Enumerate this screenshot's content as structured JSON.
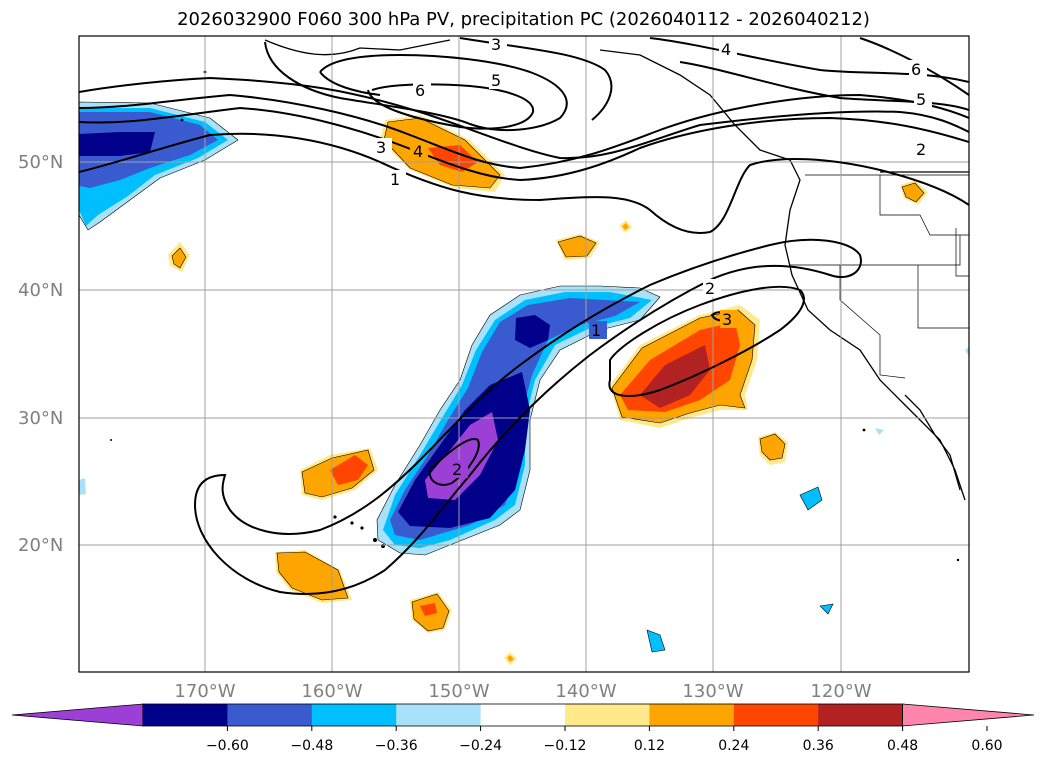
{
  "title": "2026032900 F060 300 hPa PV, precipitation PC (2026040112 - 2026040212)",
  "lat_labels": [
    "50°N",
    "40°N",
    "30°N",
    "20°N"
  ],
  "lon_labels": [
    "170°W",
    "160°W",
    "150°W",
    "140°W",
    "130°W",
    "120°W"
  ],
  "contour_labels": [
    "3",
    "4",
    "5",
    "6",
    "6",
    "5",
    "4",
    "3",
    "2",
    "1",
    "1",
    "2",
    "2",
    "3"
  ],
  "colorbar": {
    "ticks": [
      "−0.60",
      "−0.48",
      "−0.36",
      "−0.24",
      "−0.12",
      "0.12",
      "0.24",
      "0.36",
      "0.48",
      "0.60"
    ],
    "colors": [
      "#9b3fd6",
      "#00008b",
      "#3a5bcf",
      "#00bfff",
      "#a8e1fa",
      "#ffffff",
      "#ffe98a",
      "#ffa500",
      "#ff4500",
      "#b22222",
      "#ff85ad"
    ]
  },
  "colors": {
    "purple": "#9b3fd6",
    "navy": "#00008b",
    "blue": "#3a5bcf",
    "sky": "#00bfff",
    "lightblue": "#a8e1fa",
    "yellow": "#ffe98a",
    "orange": "#ffa500",
    "redorange": "#ff4500",
    "firebrick": "#b22222",
    "pink": "#ff85ad"
  }
}
